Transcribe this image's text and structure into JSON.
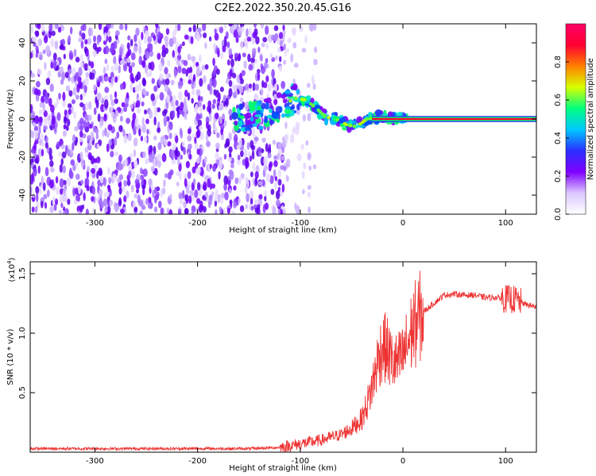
{
  "title": "C2E2.2022.350.20.45.G16",
  "chart_data": [
    {
      "type": "heatmap",
      "xlabel": "Height of straight line (km)",
      "ylabel": "Frequency (Hz)",
      "xlim": [
        -363,
        130
      ],
      "ylim": [
        -50,
        50
      ],
      "xticks": [
        -300,
        -200,
        -100,
        0,
        100
      ],
      "yticks": [
        -40,
        -20,
        0,
        20,
        40
      ],
      "colorbar": {
        "label": "Normalized spectral amplitude",
        "range": [
          0.0,
          1.0
        ],
        "ticks": [
          "0.0",
          "0.2",
          "0.4",
          "0.6",
          "0.8"
        ],
        "colormap": [
          "#ffffff",
          "#dcc8ff",
          "#7f00ff",
          "#2a30ff",
          "#00c8ff",
          "#00ff7f",
          "#d8ff00",
          "#ff8000",
          "#ff0033",
          "#ff0066"
        ]
      },
      "features": {
        "noise_region_x": [
          -363,
          -115
        ],
        "noise_fade_x": [
          -115,
          -85
        ],
        "track_points": [
          {
            "x": -160,
            "y": 0
          },
          {
            "x": -140,
            "y": 2
          },
          {
            "x": -120,
            "y": 6
          },
          {
            "x": -105,
            "y": 11
          },
          {
            "x": -95,
            "y": 10
          },
          {
            "x": -85,
            "y": 6
          },
          {
            "x": -75,
            "y": 1
          },
          {
            "x": -65,
            "y": 0
          },
          {
            "x": -55,
            "y": -3
          },
          {
            "x": -45,
            "y": -4
          },
          {
            "x": -35,
            "y": 0
          },
          {
            "x": -20,
            "y": 1
          },
          {
            "x": 0,
            "y": 0
          },
          {
            "x": 130,
            "y": 0
          }
        ],
        "flat_line_y": 0
      }
    },
    {
      "type": "line",
      "xlabel": "Height of straight line (km)",
      "ylabel": "SNR (10 * v/v)",
      "yscale_label": "(x10^4)",
      "xlim": [
        -363,
        130
      ],
      "ylim": [
        0,
        1.6
      ],
      "xticks": [
        -300,
        -200,
        -100,
        0,
        100
      ],
      "yticks": [
        "0.5",
        "1.0",
        "1.5"
      ],
      "color": "#ee3333",
      "series": [
        {
          "x": [
            -363,
            -300,
            -200,
            -150,
            -120,
            -100,
            -80,
            -60,
            -50,
            -40,
            -35,
            -30,
            -25,
            -20,
            -15,
            -10,
            -5,
            0,
            10,
            20,
            30,
            40,
            50,
            60,
            70,
            80,
            90,
            100,
            110,
            120,
            130
          ],
          "y": [
            0.03,
            0.03,
            0.03,
            0.03,
            0.04,
            0.07,
            0.1,
            0.15,
            0.2,
            0.28,
            0.4,
            0.55,
            0.75,
            0.9,
            0.85,
            0.75,
            0.75,
            0.8,
            1.05,
            1.18,
            1.25,
            1.32,
            1.33,
            1.32,
            1.32,
            1.3,
            1.3,
            1.29,
            1.28,
            1.24,
            1.22
          ]
        }
      ]
    }
  ]
}
